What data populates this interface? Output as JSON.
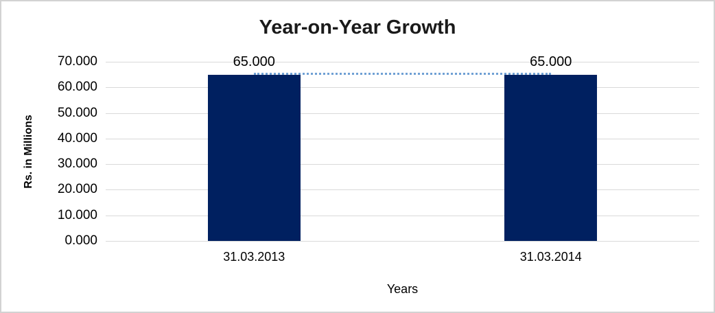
{
  "chart_data": {
    "type": "bar",
    "title": "Year-on-Year Growth",
    "xlabel": "Years",
    "ylabel": "Rs. in Millions",
    "categories": [
      "31.03.2013",
      "31.03.2014"
    ],
    "values": [
      65.0,
      65.0
    ],
    "data_labels": [
      "65.000",
      "65.000"
    ],
    "yticks": [
      "70.000",
      "60.000",
      "50.000",
      "40.000",
      "30.000",
      "20.000",
      "10.000",
      "0.000"
    ],
    "ylim": [
      0,
      70
    ],
    "ytick_step": 10,
    "grid": true,
    "legend": false,
    "trend_line": "dotted connector between bar tops at 65.000",
    "colors": {
      "bar": "#002060",
      "trend_line": "#6fa0d4",
      "gridline": "#d9d9d9",
      "frame_border": "#d2d2d2",
      "text": "#000000",
      "title_text": "#1a1a1a",
      "background": "#ffffff"
    }
  }
}
